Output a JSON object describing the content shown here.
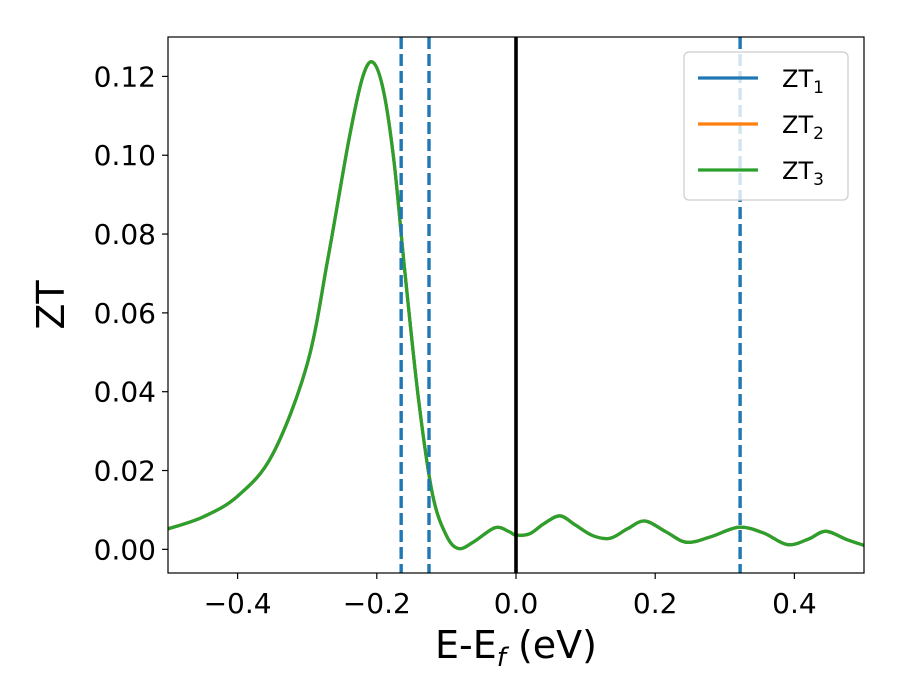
{
  "chart_data": {
    "type": "line",
    "xlabel": "E-E_f (eV)",
    "ylabel": "ZT",
    "xlim": [
      -0.5,
      0.5
    ],
    "ylim": [
      -0.006,
      0.13
    ],
    "xticks": [
      -0.4,
      -0.2,
      0.0,
      0.2,
      0.4
    ],
    "xtick_labels": [
      "−0.4",
      "−0.2",
      "0.0",
      "0.2",
      "0.4"
    ],
    "yticks": [
      0.0,
      0.02,
      0.04,
      0.06,
      0.08,
      0.1,
      0.12
    ],
    "ytick_labels": [
      "0.00",
      "0.02",
      "0.04",
      "0.06",
      "0.08",
      "0.10",
      "0.12"
    ],
    "grid": false,
    "legend_position": "top-right",
    "vertical_lines": [
      {
        "x": -0.165,
        "style": "dashed",
        "color": "#1f77b4"
      },
      {
        "x": -0.125,
        "style": "dashed",
        "color": "#1f77b4"
      },
      {
        "x": 0.322,
        "style": "dashed",
        "color": "#1f77b4"
      },
      {
        "x": 0.0,
        "style": "solid",
        "color": "#000000"
      }
    ],
    "x": [
      -0.5,
      -0.45,
      -0.4,
      -0.35,
      -0.3,
      -0.27,
      -0.24,
      -0.22,
      -0.205,
      -0.19,
      -0.175,
      -0.16,
      -0.14,
      -0.12,
      -0.1,
      -0.082,
      -0.06,
      -0.03,
      -0.01,
      0.0,
      0.02,
      0.04,
      0.063,
      0.085,
      0.11,
      0.135,
      0.16,
      0.185,
      0.215,
      0.245,
      0.28,
      0.32,
      0.355,
      0.39,
      0.42,
      0.445,
      0.475,
      0.5
    ],
    "series": [
      {
        "name": "ZT_1",
        "color": "#1f77b4",
        "values": [
          0.0052,
          0.0082,
          0.0135,
          0.024,
          0.047,
          0.074,
          0.104,
          0.12,
          0.1235,
          0.116,
          0.098,
          0.071,
          0.038,
          0.014,
          0.0035,
          0.0002,
          0.002,
          0.0055,
          0.0045,
          0.0036,
          0.004,
          0.0065,
          0.0085,
          0.0062,
          0.0035,
          0.0028,
          0.0052,
          0.0072,
          0.0045,
          0.0018,
          0.0032,
          0.0056,
          0.0042,
          0.0012,
          0.0026,
          0.0046,
          0.0025,
          0.001
        ]
      },
      {
        "name": "ZT_2",
        "color": "#ff7f0e",
        "values": [
          0.0052,
          0.0082,
          0.0135,
          0.024,
          0.047,
          0.074,
          0.104,
          0.12,
          0.1235,
          0.116,
          0.098,
          0.071,
          0.038,
          0.014,
          0.0035,
          0.0002,
          0.002,
          0.0055,
          0.0045,
          0.0036,
          0.004,
          0.0065,
          0.0085,
          0.0062,
          0.0035,
          0.0028,
          0.0052,
          0.0072,
          0.0045,
          0.0018,
          0.0032,
          0.0056,
          0.0042,
          0.0012,
          0.0026,
          0.0046,
          0.0025,
          0.001
        ]
      },
      {
        "name": "ZT_3",
        "color": "#2ca02c",
        "values": [
          0.0052,
          0.0082,
          0.0135,
          0.024,
          0.047,
          0.074,
          0.104,
          0.12,
          0.1235,
          0.116,
          0.098,
          0.071,
          0.038,
          0.014,
          0.0035,
          0.0002,
          0.002,
          0.0055,
          0.0045,
          0.0036,
          0.004,
          0.0065,
          0.0085,
          0.0062,
          0.0035,
          0.0028,
          0.0052,
          0.0072,
          0.0045,
          0.0018,
          0.0032,
          0.0056,
          0.0042,
          0.0012,
          0.0026,
          0.0046,
          0.0025,
          0.001
        ]
      }
    ],
    "legend": [
      {
        "base": "ZT",
        "sub": "1",
        "color": "#1f77b4"
      },
      {
        "base": "ZT",
        "sub": "2",
        "color": "#ff7f0e"
      },
      {
        "base": "ZT",
        "sub": "3",
        "color": "#2ca02c"
      }
    ]
  }
}
